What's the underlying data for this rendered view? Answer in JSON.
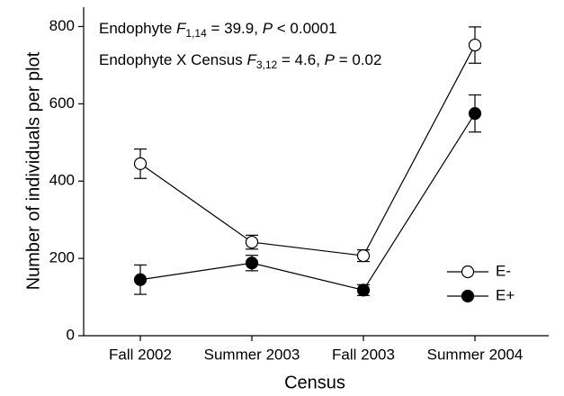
{
  "chart_data": {
    "type": "line",
    "xlabel": "Census",
    "ylabel": "Number of individuals per plot",
    "categories": [
      "Fall 2002",
      "Summer 2003",
      "Fall 2003",
      "Summer 2004"
    ],
    "ylim": [
      0,
      850
    ],
    "yticks": [
      0,
      200,
      400,
      600,
      800
    ],
    "annotations": [
      [
        "Endophyte ",
        "F",
        "1,14",
        " = 39.9, ",
        "P",
        " < 0.0001"
      ],
      [
        "Endophyte X Census ",
        "F",
        "3,12",
        " = 4.6, ",
        "P",
        " = 0.02"
      ]
    ],
    "legend": "lower right",
    "series": [
      {
        "name": "E-",
        "color": "#000000",
        "fill": "#ffffff",
        "values": [
          445,
          242,
          207,
          752
        ],
        "errors": [
          38,
          18,
          15,
          47
        ]
      },
      {
        "name": "E+",
        "color": "#000000",
        "fill": "#000000",
        "values": [
          145,
          188,
          118,
          575
        ],
        "errors": [
          38,
          20,
          14,
          48
        ]
      }
    ]
  }
}
